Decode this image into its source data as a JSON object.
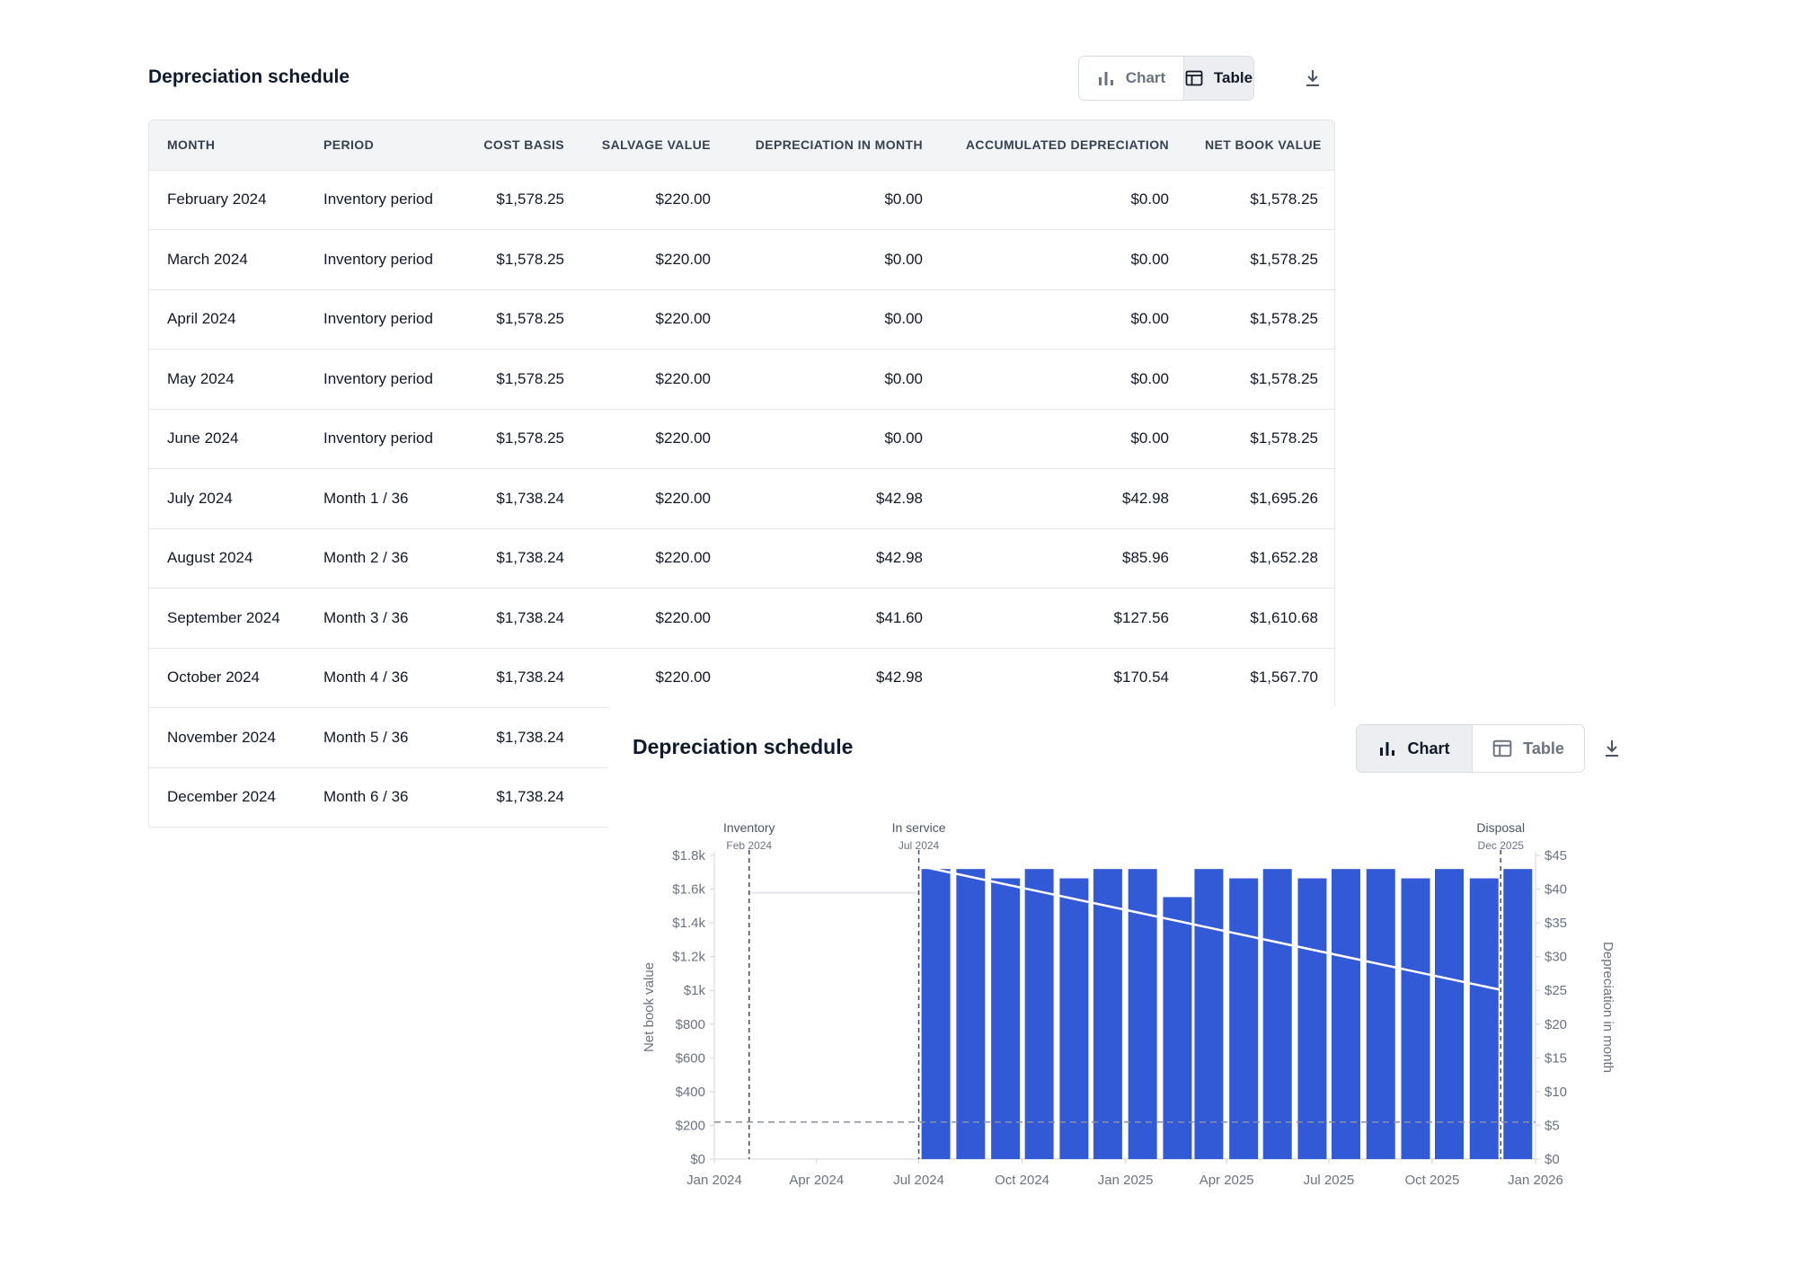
{
  "table_panel": {
    "title": "Depreciation schedule",
    "toggle": {
      "chart_label": "Chart",
      "table_label": "Table",
      "active": "table"
    },
    "columns": [
      "MONTH",
      "PERIOD",
      "COST BASIS",
      "SALVAGE VALUE",
      "DEPRECIATION IN MONTH",
      "ACCUMULATED DEPRECIATION",
      "NET BOOK VALUE"
    ],
    "rows": [
      [
        "February 2024",
        "Inventory period",
        "$1,578.25",
        "$220.00",
        "$0.00",
        "$0.00",
        "$1,578.25"
      ],
      [
        "March 2024",
        "Inventory period",
        "$1,578.25",
        "$220.00",
        "$0.00",
        "$0.00",
        "$1,578.25"
      ],
      [
        "April 2024",
        "Inventory period",
        "$1,578.25",
        "$220.00",
        "$0.00",
        "$0.00",
        "$1,578.25"
      ],
      [
        "May 2024",
        "Inventory period",
        "$1,578.25",
        "$220.00",
        "$0.00",
        "$0.00",
        "$1,578.25"
      ],
      [
        "June 2024",
        "Inventory period",
        "$1,578.25",
        "$220.00",
        "$0.00",
        "$0.00",
        "$1,578.25"
      ],
      [
        "July 2024",
        "Month 1 / 36",
        "$1,738.24",
        "$220.00",
        "$42.98",
        "$42.98",
        "$1,695.26"
      ],
      [
        "August 2024",
        "Month 2 / 36",
        "$1,738.24",
        "$220.00",
        "$42.98",
        "$85.96",
        "$1,652.28"
      ],
      [
        "September 2024",
        "Month 3 / 36",
        "$1,738.24",
        "$220.00",
        "$41.60",
        "$127.56",
        "$1,610.68"
      ],
      [
        "October 2024",
        "Month 4 / 36",
        "$1,738.24",
        "$220.00",
        "$42.98",
        "$170.54",
        "$1,567.70"
      ],
      [
        "November 2024",
        "Month 5 / 36",
        "$1,738.24",
        "",
        "",
        "",
        ""
      ],
      [
        "December 2024",
        "Month 6 / 36",
        "$1,738.24",
        "",
        "",
        "",
        ""
      ]
    ]
  },
  "chart_panel": {
    "title": "Depreciation schedule",
    "toggle": {
      "chart_label": "Chart",
      "table_label": "Table",
      "active": "chart"
    }
  },
  "chart_data": {
    "type": "bar",
    "x_ticks": [
      "Jan 2024",
      "Apr 2024",
      "Jul 2024",
      "Oct 2024",
      "Jan 2025",
      "Apr 2025",
      "Jul 2025",
      "Oct 2025",
      "Jan 2026"
    ],
    "y_left_label": "Net book value",
    "y_left_ticks": [
      "$0",
      "$200",
      "$400",
      "$600",
      "$800",
      "$1k",
      "$1.2k",
      "$1.4k",
      "$1.6k",
      "$1.8k"
    ],
    "y_left_range": [
      0,
      1800
    ],
    "y_right_label": "Depreciation in month",
    "y_right_ticks": [
      "$0",
      "$5",
      "$10",
      "$15",
      "$20",
      "$25",
      "$30",
      "$35",
      "$40",
      "$45"
    ],
    "y_right_range": [
      0,
      45
    ],
    "bars": {
      "name": "Depreciation in month",
      "color": "#3259d6",
      "months": [
        "2024-07",
        "2024-08",
        "2024-09",
        "2024-10",
        "2024-11",
        "2024-12",
        "2025-01",
        "2025-02",
        "2025-03",
        "2025-04",
        "2025-05",
        "2025-06",
        "2025-07",
        "2025-08",
        "2025-09",
        "2025-10",
        "2025-11",
        "2025-12"
      ],
      "values": [
        42.98,
        42.98,
        41.6,
        42.98,
        41.6,
        42.98,
        42.98,
        38.82,
        42.98,
        41.6,
        42.98,
        41.6,
        42.98,
        42.98,
        41.6,
        42.98,
        41.6,
        42.98
      ]
    },
    "net_book_value": {
      "name": "Net book value",
      "points": [
        [
          "2024-02-01",
          1578.25
        ],
        [
          "2024-07-01",
          1578.25
        ],
        [
          "2024-07-01",
          1738.24
        ],
        [
          "2025-12-01",
          1003
        ]
      ]
    },
    "salvage_value": 220,
    "markers": [
      {
        "label": "Inventory",
        "sub": "Feb 2024",
        "date": "2024-02-01"
      },
      {
        "label": "In service",
        "sub": "Jul 2024",
        "date": "2024-07-01"
      },
      {
        "label": "Disposal",
        "sub": "Dec 2025",
        "date": "2025-12-01"
      }
    ]
  }
}
